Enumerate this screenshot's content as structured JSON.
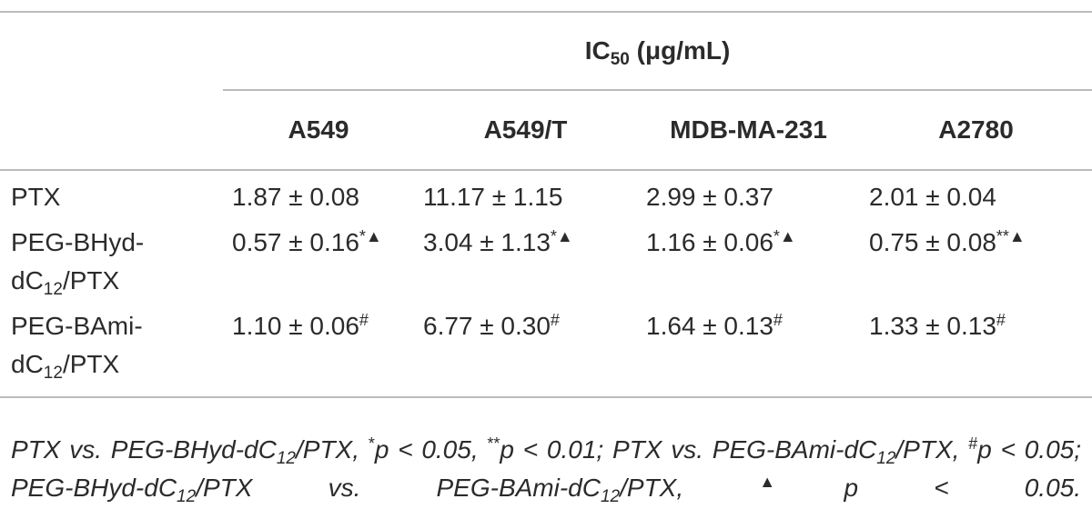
{
  "table": {
    "group_header": [
      {
        "text": "IC"
      },
      {
        "text": "50",
        "sub": true
      },
      {
        "text": " (μg/mL)"
      }
    ],
    "columns": [
      "A549",
      "A549/T",
      "MDB-MA-231",
      "A2780"
    ],
    "rows": [
      {
        "label": [
          {
            "text": "PTX"
          }
        ],
        "cells": [
          {
            "text": "1.87 ± 0.08"
          },
          {
            "text": "11.17 ± 1.15"
          },
          {
            "text": "2.99 ± 0.37"
          },
          {
            "text": "2.01 ± 0.04"
          }
        ]
      },
      {
        "label": [
          {
            "text": "PEG-BHyd-dC"
          },
          {
            "text": "12",
            "sub": true
          },
          {
            "text": "/PTX"
          }
        ],
        "cells": [
          {
            "text": "0.57 ± 0.16",
            "sup": "*▲"
          },
          {
            "text": "3.04 ± 1.13",
            "sup": "*▲"
          },
          {
            "text": "1.16 ± 0.06",
            "sup": "*▲"
          },
          {
            "text": "0.75 ± 0.08",
            "sup": "**▲"
          }
        ]
      },
      {
        "label": [
          {
            "text": "PEG-BAmi-dC"
          },
          {
            "text": "12",
            "sub": true
          },
          {
            "text": "/PTX"
          }
        ],
        "cells": [
          {
            "text": "1.10 ± 0.06",
            "sup": "#"
          },
          {
            "text": "6.77 ± 0.30",
            "sup": "#"
          },
          {
            "text": "1.64 ± 0.13",
            "sup": "#"
          },
          {
            "text": "1.33 ± 0.13",
            "sup": "#"
          }
        ]
      }
    ]
  },
  "footnote": [
    {
      "text": "PTX vs. PEG-BHyd-dC"
    },
    {
      "text": "12",
      "sub": true
    },
    {
      "text": "/PTX, "
    },
    {
      "text": "*",
      "sup": true
    },
    {
      "text": "p < 0.05, "
    },
    {
      "text": "**",
      "sup": true
    },
    {
      "text": "p < 0.01; PTX vs. PEG-BAmi-dC"
    },
    {
      "text": "12",
      "sub": true
    },
    {
      "text": "/PTX, "
    },
    {
      "text": "#",
      "sup": true
    },
    {
      "text": "p < 0.05; PEG-BHyd-dC"
    },
    {
      "text": "12",
      "sub": true
    },
    {
      "text": "/PTX vs. PEG-BAmi-dC"
    },
    {
      "text": "12",
      "sub": true
    },
    {
      "text": "/PTX, "
    },
    {
      "text": "▲",
      "sup": true
    },
    {
      "text": "p < 0.05."
    }
  ]
}
